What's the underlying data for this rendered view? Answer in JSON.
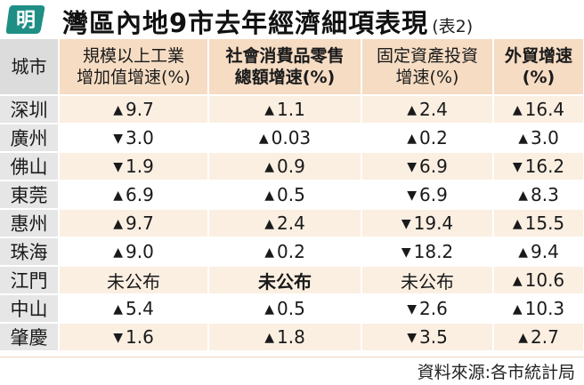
{
  "header": {
    "logo_char": "明",
    "title": "灣區內地9市去年經濟細項表現",
    "subtitle": "(表2)"
  },
  "table": {
    "columns": [
      "城市",
      "規模以上工業\n增加值增速(%)",
      "社會消費品零售\n總額增速(%)",
      "固定資產投資\n增速(%)",
      "外貿增速\n(%)"
    ],
    "rows": [
      {
        "city": "深圳",
        "cells": [
          {
            "dir": "up",
            "val": "9.7"
          },
          {
            "dir": "up",
            "val": "1.1"
          },
          {
            "dir": "up",
            "val": "2.4"
          },
          {
            "dir": "up",
            "val": "16.4"
          }
        ]
      },
      {
        "city": "廣州",
        "cells": [
          {
            "dir": "down",
            "val": "3.0"
          },
          {
            "dir": "up",
            "val": "0.03"
          },
          {
            "dir": "up",
            "val": "0.2"
          },
          {
            "dir": "up",
            "val": "3.0"
          }
        ]
      },
      {
        "city": "佛山",
        "cells": [
          {
            "dir": "down",
            "val": "1.9"
          },
          {
            "dir": "up",
            "val": "0.9"
          },
          {
            "dir": "down",
            "val": "6.9"
          },
          {
            "dir": "down",
            "val": "16.2"
          }
        ]
      },
      {
        "city": "東莞",
        "cells": [
          {
            "dir": "up",
            "val": "6.9"
          },
          {
            "dir": "up",
            "val": "0.5"
          },
          {
            "dir": "down",
            "val": "6.9"
          },
          {
            "dir": "up",
            "val": "8.3"
          }
        ]
      },
      {
        "city": "惠州",
        "cells": [
          {
            "dir": "up",
            "val": "9.7"
          },
          {
            "dir": "up",
            "val": "2.4"
          },
          {
            "dir": "down",
            "val": "19.4"
          },
          {
            "dir": "up",
            "val": "15.5"
          }
        ]
      },
      {
        "city": "珠海",
        "cells": [
          {
            "dir": "up",
            "val": "9.0"
          },
          {
            "dir": "up",
            "val": "0.2"
          },
          {
            "dir": "down",
            "val": "18.2"
          },
          {
            "dir": "up",
            "val": "9.4"
          }
        ]
      },
      {
        "city": "江門",
        "cells": [
          {
            "dir": "none",
            "val": "未公布"
          },
          {
            "dir": "none",
            "val": "未公布"
          },
          {
            "dir": "none",
            "val": "未公布"
          },
          {
            "dir": "up",
            "val": "10.6"
          }
        ]
      },
      {
        "city": "中山",
        "cells": [
          {
            "dir": "up",
            "val": "5.4"
          },
          {
            "dir": "up",
            "val": "0.5"
          },
          {
            "dir": "down",
            "val": "2.6"
          },
          {
            "dir": "up",
            "val": "10.3"
          }
        ]
      },
      {
        "city": "肇慶",
        "cells": [
          {
            "dir": "down",
            "val": "1.6"
          },
          {
            "dir": "up",
            "val": "1.8"
          },
          {
            "dir": "down",
            "val": "3.5"
          },
          {
            "dir": "up",
            "val": "2.7"
          }
        ]
      }
    ]
  },
  "arrows": {
    "up": "▲",
    "down": "▼"
  },
  "source": "資料來源:各市統計局",
  "colors": {
    "header_bg": "#f5dcc3",
    "row_alt": "#fbefe2",
    "city_bg": "#e6e6e6",
    "logo": "#1f8f86"
  }
}
